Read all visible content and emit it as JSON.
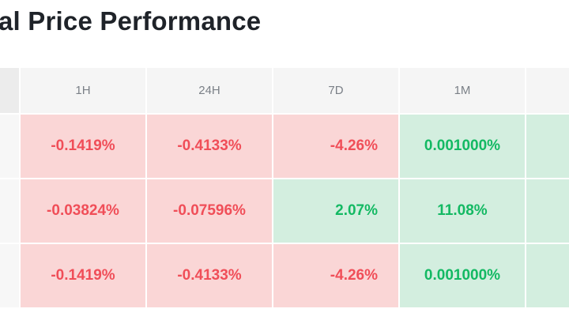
{
  "title": "al Price Performance",
  "colors": {
    "negative_text": "#f04e58",
    "negative_bg": "#fad6d6",
    "positive_text": "#13b963",
    "positive_bg": "#d3eedf",
    "header_bg": "#f5f5f5"
  },
  "table": {
    "headers": [
      "1H",
      "24H",
      "7D",
      "1M"
    ],
    "rows": [
      {
        "values": [
          "-0.1419%",
          "-0.4133%",
          "-4.26%",
          "0.001000%"
        ],
        "signs": [
          "neg",
          "neg",
          "neg",
          "pos"
        ],
        "trailing_sign": "pos"
      },
      {
        "values": [
          "-0.03824%",
          "-0.07596%",
          "2.07%",
          "11.08%"
        ],
        "signs": [
          "neg",
          "neg",
          "pos",
          "pos"
        ],
        "trailing_sign": "pos"
      },
      {
        "values": [
          "-0.1419%",
          "-0.4133%",
          "-4.26%",
          "0.001000%"
        ],
        "signs": [
          "neg",
          "neg",
          "neg",
          "pos"
        ],
        "trailing_sign": "pos"
      }
    ]
  }
}
